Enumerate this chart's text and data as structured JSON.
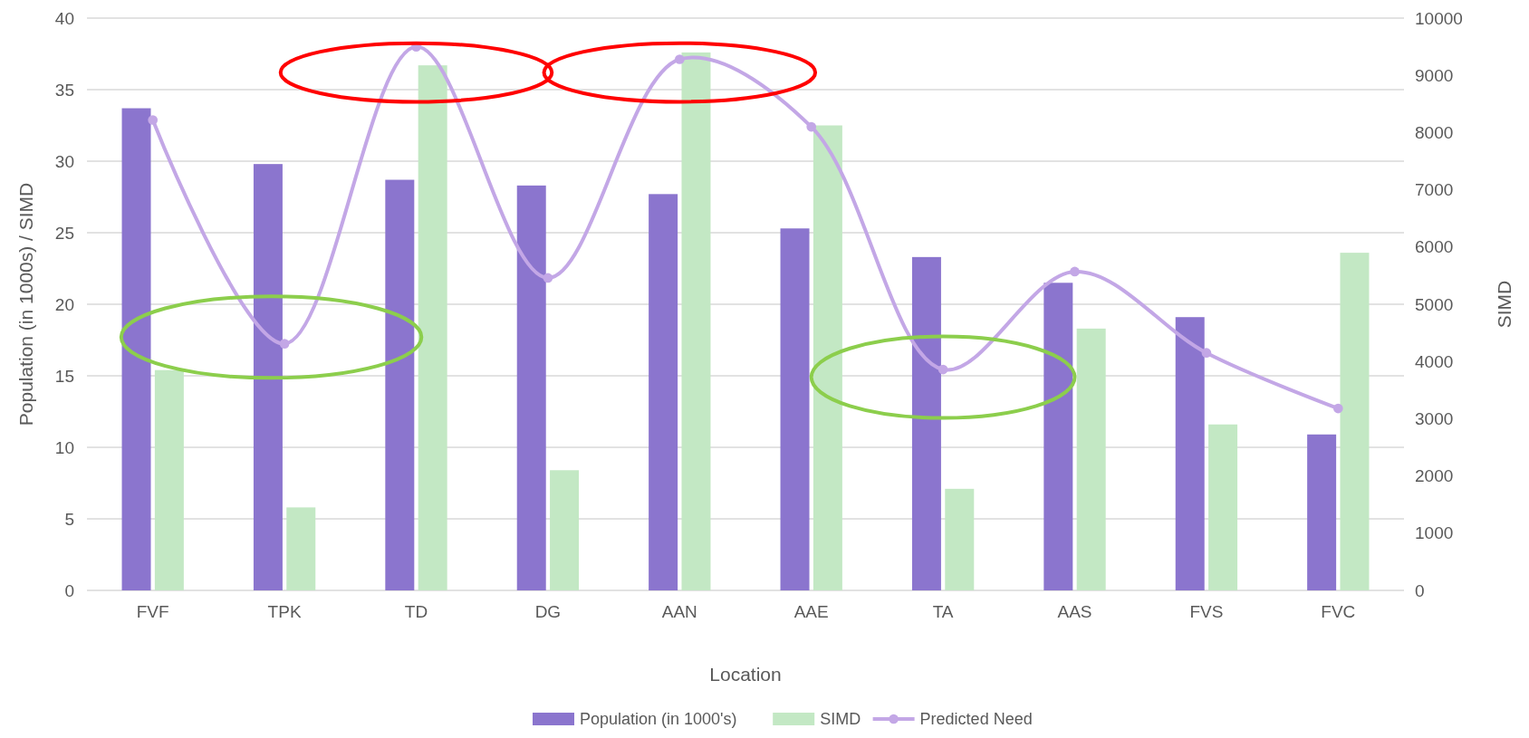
{
  "chart_data": {
    "type": "bar",
    "xlabel": "Location",
    "ylabel": "Population (in 1000s) / SIMD",
    "y2label": "SIMD",
    "categories": [
      "FVF",
      "TPK",
      "TD",
      "DG",
      "AAN",
      "AAE",
      "TA",
      "AAS",
      "FVS",
      "FVC"
    ],
    "series": [
      {
        "name": "Population (in 1000's)",
        "color": "#8b75ce",
        "values": [
          33.7,
          29.8,
          28.7,
          28.3,
          27.7,
          25.3,
          23.3,
          21.5,
          19.1,
          10.9
        ]
      },
      {
        "name": "SIMD",
        "color": "#c3e8c4",
        "values": [
          15.4,
          5.8,
          36.7,
          8.4,
          37.6,
          32.5,
          7.1,
          18.3,
          11.6,
          23.6
        ]
      },
      {
        "name": "Predicted Need",
        "type": "line",
        "axis": "y2",
        "color": "#c3a7e6",
        "marker": "circle",
        "values": [
          8220,
          4310,
          9500,
          5460,
          9280,
          8100,
          3860,
          5570,
          4150,
          3180
        ]
      }
    ],
    "ylim": [
      0,
      40
    ],
    "yticks": [
      0,
      5,
      10,
      15,
      20,
      25,
      30,
      35,
      40
    ],
    "y2lim": [
      0,
      10000
    ],
    "y2ticks": [
      0,
      1000,
      2000,
      3000,
      4000,
      5000,
      6000,
      7000,
      8000,
      9000,
      10000
    ],
    "grid": "y",
    "legend": "bottom"
  }
}
